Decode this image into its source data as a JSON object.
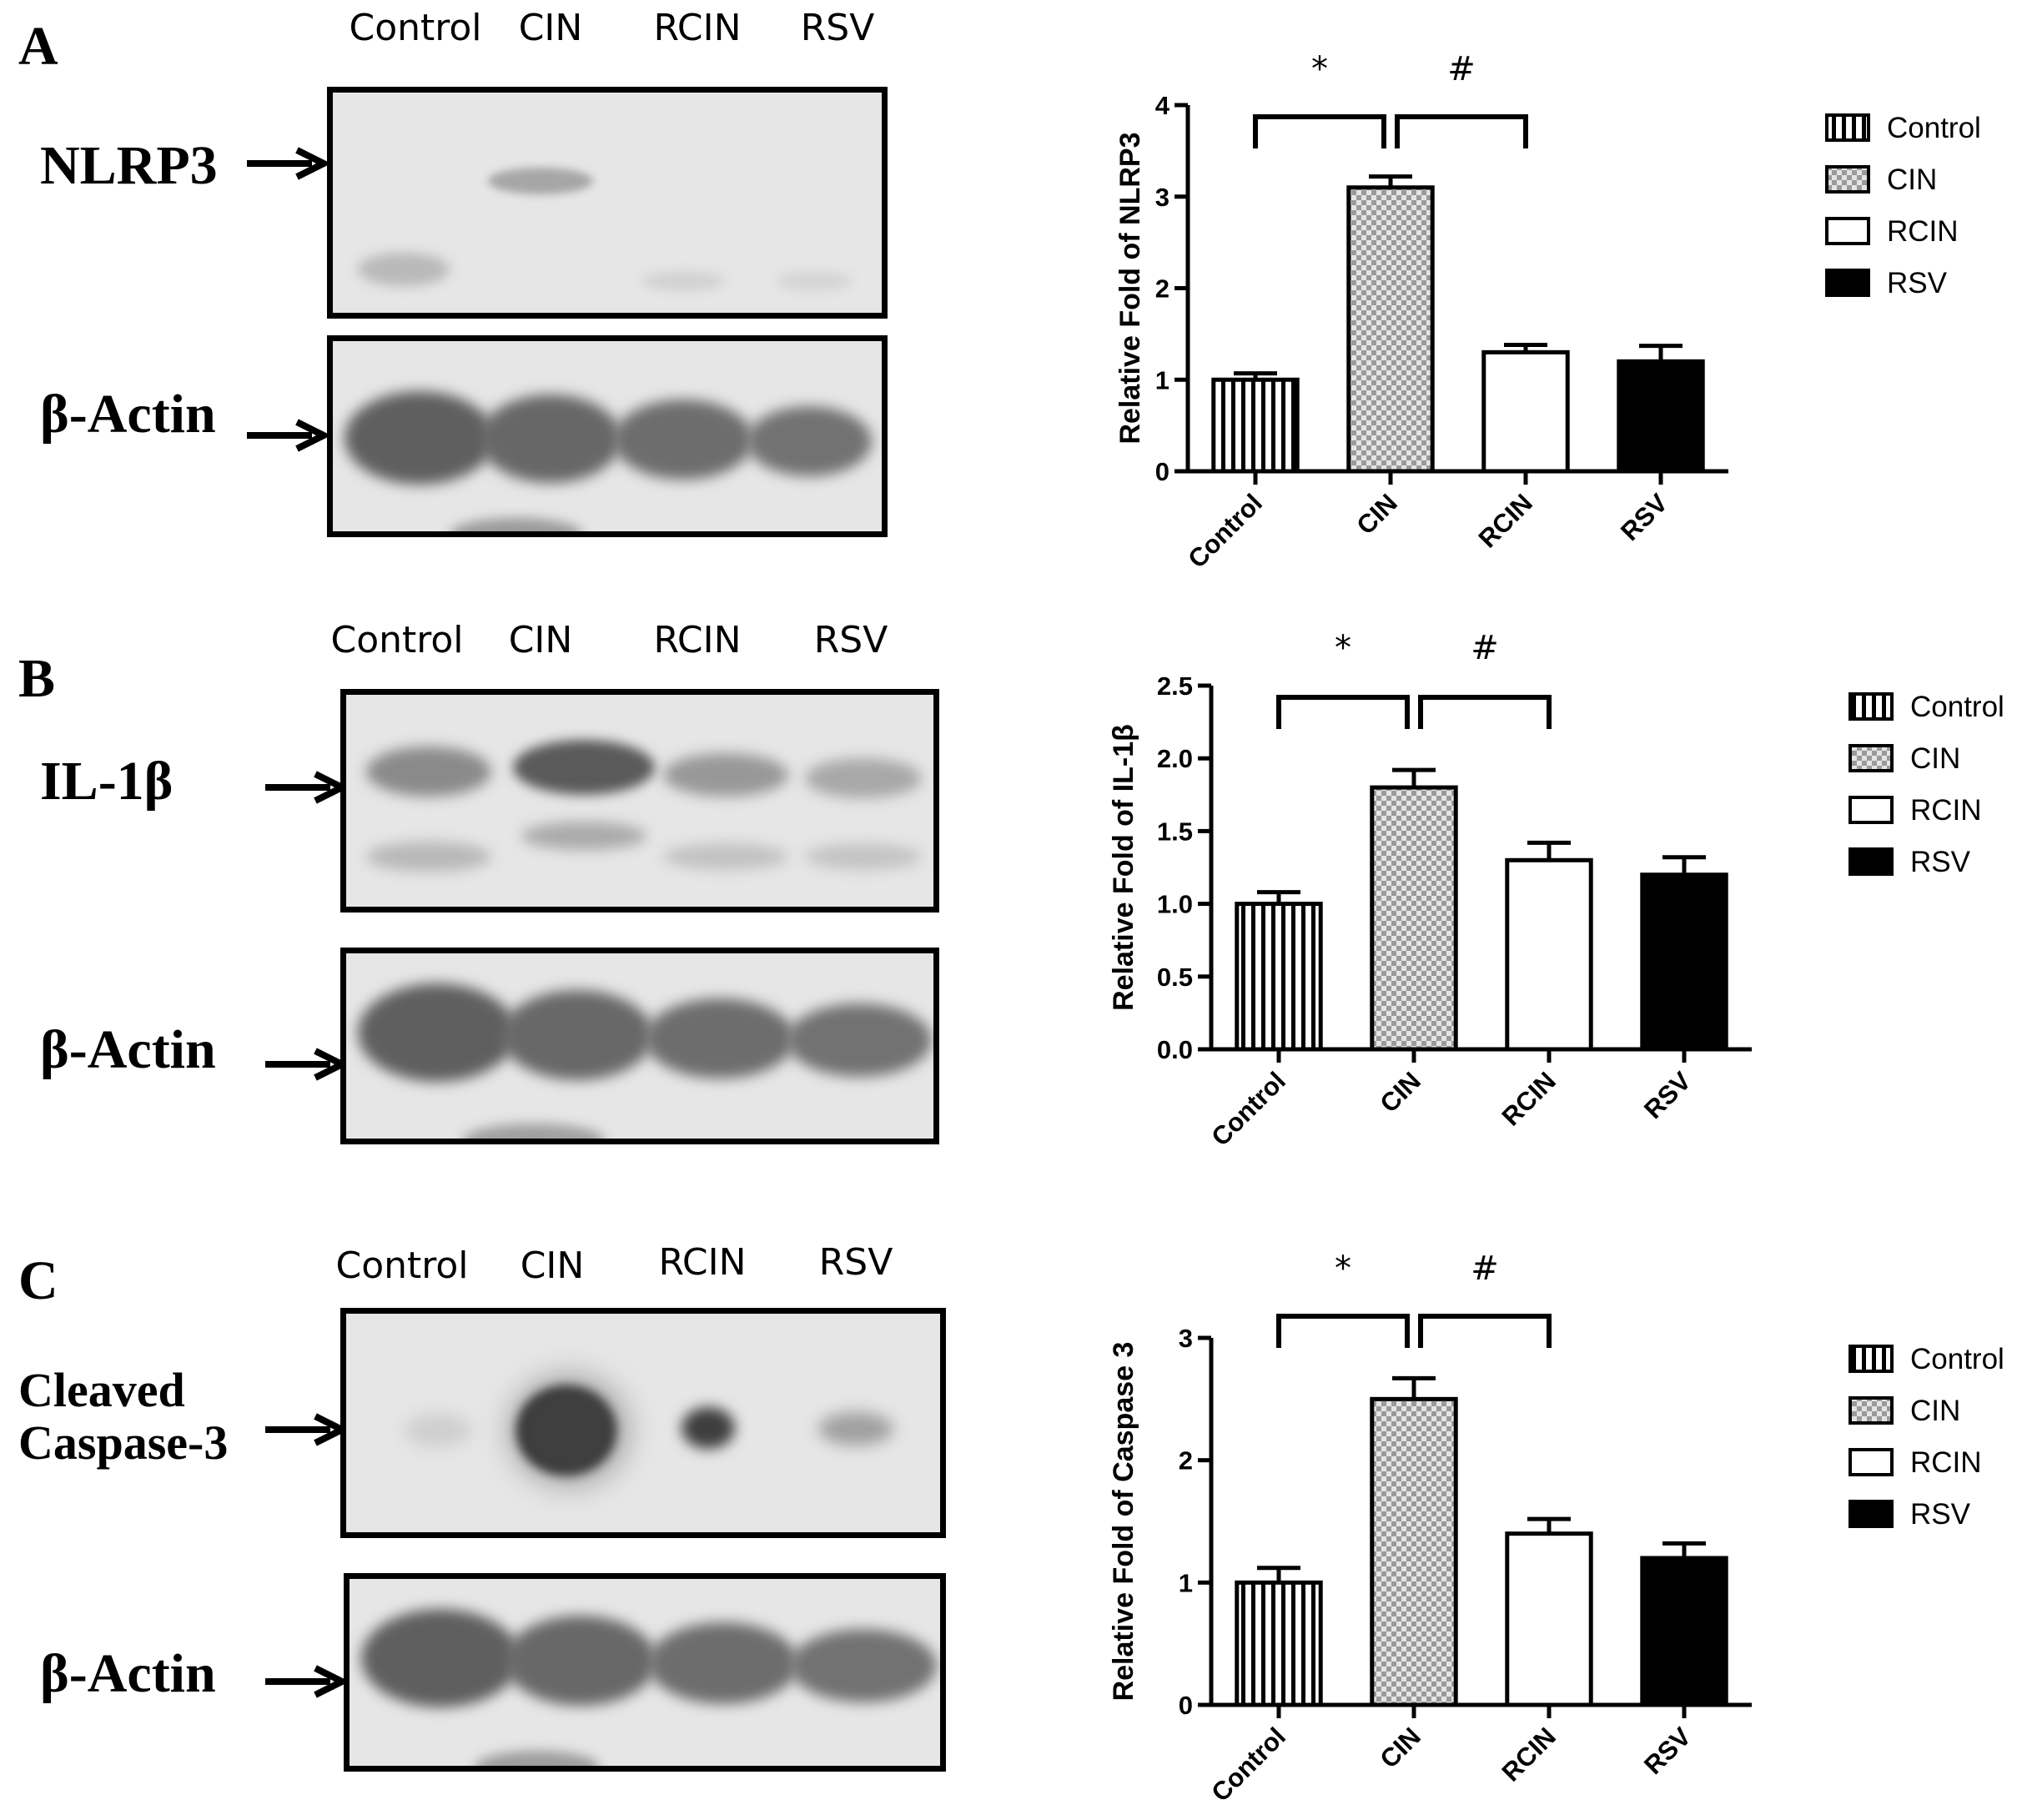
{
  "lanes": [
    "Control",
    "CIN",
    "RCIN",
    "RSV"
  ],
  "panels": [
    {
      "letter": "A",
      "protein": "NLRP3",
      "loading": "β-Actin"
    },
    {
      "letter": "B",
      "protein": "IL-1β",
      "loading": "β-Actin"
    },
    {
      "letter": "C",
      "protein_lines": [
        "Cleaved",
        "Caspase-3"
      ],
      "loading": "β-Actin"
    }
  ],
  "legend": {
    "entries": [
      "Control",
      "CIN",
      "RCIN",
      "RSV"
    ],
    "fills": [
      "vertical-stripes",
      "checkerboard",
      "white",
      "black"
    ]
  },
  "chart_data": [
    {
      "type": "bar",
      "panel": "A",
      "categories": [
        "Control",
        "CIN",
        "RCIN",
        "RSV"
      ],
      "values": [
        1.0,
        3.1,
        1.3,
        1.2
      ],
      "errors": [
        0.07,
        0.12,
        0.08,
        0.17
      ],
      "ylabel": "Relative Fold of NLRP3",
      "ylim": [
        0,
        4
      ],
      "yticks": [
        "0",
        "1",
        "2",
        "3",
        "4"
      ],
      "significance": [
        {
          "symbol": "*",
          "from": "Control",
          "to": "CIN"
        },
        {
          "symbol": "#",
          "from": "CIN",
          "to": "RCIN"
        }
      ],
      "grid": false,
      "legend_position": "right"
    },
    {
      "type": "bar",
      "panel": "B",
      "categories": [
        "Control",
        "CIN",
        "RCIN",
        "RSV"
      ],
      "values": [
        1.0,
        1.8,
        1.3,
        1.2
      ],
      "errors": [
        0.08,
        0.12,
        0.12,
        0.12
      ],
      "ylabel": "Relative Fold of IL-1β",
      "ylim": [
        0,
        2.5
      ],
      "yticks": [
        "0.0",
        "0.5",
        "1.0",
        "1.5",
        "2.0",
        "2.5"
      ],
      "significance": [
        {
          "symbol": "*",
          "from": "Control",
          "to": "CIN"
        },
        {
          "symbol": "#",
          "from": "CIN",
          "to": "RCIN"
        }
      ],
      "grid": false,
      "legend_position": "right"
    },
    {
      "type": "bar",
      "panel": "C",
      "categories": [
        "Control",
        "CIN",
        "RCIN",
        "RSV"
      ],
      "values": [
        1.0,
        2.5,
        1.4,
        1.2
      ],
      "errors": [
        0.12,
        0.17,
        0.12,
        0.12
      ],
      "ylabel": "Relative Fold of Caspase 3",
      "ylim": [
        0,
        3
      ],
      "yticks": [
        "0",
        "1",
        "2",
        "3"
      ],
      "significance": [
        {
          "symbol": "*",
          "from": "Control",
          "to": "CIN"
        },
        {
          "symbol": "#",
          "from": "CIN",
          "to": "RCIN"
        }
      ],
      "grid": false,
      "legend_position": "right"
    }
  ]
}
